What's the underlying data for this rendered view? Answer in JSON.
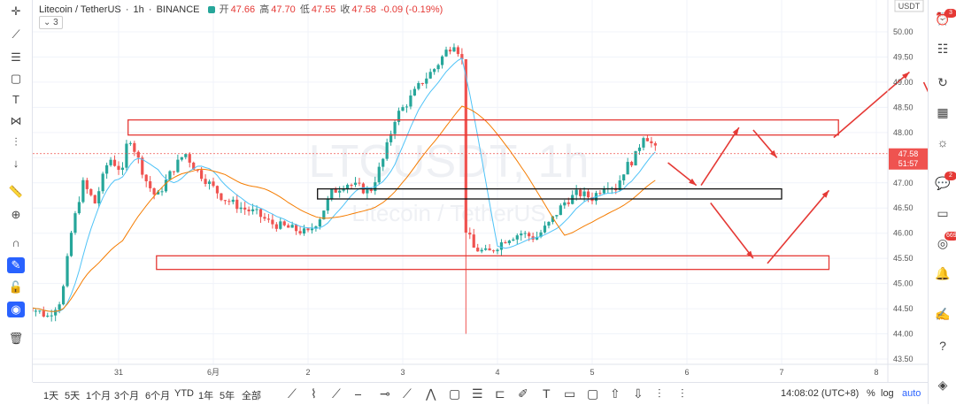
{
  "header": {
    "symbol": "Litecoin / TetherUS",
    "interval": "1h",
    "exchange": "BINANCE",
    "open_label": "开",
    "open": "47.66",
    "high_label": "高",
    "high": "47.70",
    "low_label": "低",
    "low": "47.55",
    "close_label": "收",
    "close": "47.58",
    "change": "-0.09 (-0.19%)",
    "indicators_collapse": "⌄ 3"
  },
  "watermark": {
    "line1": "LTCUSDT, 1h",
    "line2": "Litecoin / TetherUS"
  },
  "price_axis": {
    "currency": "USDT",
    "last_price": "47.58",
    "countdown": "51:57",
    "colors": {
      "up": "#26a69a",
      "down": "#ef5350",
      "ma_fast": "#4fc3f7",
      "ma_slow": "#f57c00",
      "drawing": "#e53935"
    }
  },
  "chart_data": {
    "type": "candlestick",
    "title": "Litecoin / TetherUS, 1h, BINANCE",
    "ylim": [
      43.4,
      50.4
    ],
    "y_ticks": [
      "50.00",
      "49.50",
      "49.00",
      "48.50",
      "48.00",
      "47.50",
      "47.00",
      "46.50",
      "46.00",
      "45.50",
      "45.00",
      "44.50",
      "44.00",
      "43.50"
    ],
    "x_ticks": [
      {
        "label": "31",
        "day": 30.5
      },
      {
        "label": "6月",
        "day": 31.5
      },
      {
        "label": "2",
        "day": 32.5
      },
      {
        "label": "3",
        "day": 33.5
      },
      {
        "label": "4",
        "day": 34.5
      },
      {
        "label": "5",
        "day": 35.5
      },
      {
        "label": "6",
        "day": 36.5
      },
      {
        "label": "7",
        "day": 37.5
      },
      {
        "label": "8",
        "day": 38.5
      }
    ],
    "xlim_day": [
      29.5,
      39.5
    ],
    "x_unit": "days since May 30",
    "candle_anchor_points": [
      [
        29.5,
        44.6
      ],
      [
        29.75,
        44.35
      ],
      [
        29.9,
        44.7
      ],
      [
        30.0,
        46.0
      ],
      [
        30.12,
        47.0
      ],
      [
        30.25,
        46.6
      ],
      [
        30.4,
        47.5
      ],
      [
        30.55,
        47.2
      ],
      [
        30.6,
        48.0
      ],
      [
        30.7,
        47.5
      ],
      [
        30.8,
        47.0
      ],
      [
        30.9,
        46.7
      ],
      [
        31.05,
        47.2
      ],
      [
        31.2,
        47.6
      ],
      [
        31.3,
        47.3
      ],
      [
        31.45,
        47.0
      ],
      [
        31.6,
        46.7
      ],
      [
        31.8,
        46.5
      ],
      [
        31.95,
        46.4
      ],
      [
        32.1,
        46.2
      ],
      [
        32.3,
        46.1
      ],
      [
        32.5,
        46.0
      ],
      [
        32.62,
        46.3
      ],
      [
        32.75,
        46.8
      ],
      [
        32.9,
        47.0
      ],
      [
        33.05,
        46.9
      ],
      [
        33.15,
        46.8
      ],
      [
        33.3,
        47.5
      ],
      [
        33.42,
        48.3
      ],
      [
        33.55,
        48.6
      ],
      [
        33.7,
        49.0
      ],
      [
        33.85,
        49.3
      ],
      [
        33.95,
        49.6
      ],
      [
        34.05,
        49.8
      ],
      [
        34.15,
        49.3
      ],
      [
        34.16,
        46.1
      ],
      [
        34.25,
        45.7
      ],
      [
        34.4,
        45.6
      ],
      [
        34.6,
        45.9
      ],
      [
        34.75,
        46.0
      ],
      [
        34.9,
        45.9
      ],
      [
        35.05,
        46.2
      ],
      [
        35.2,
        46.6
      ],
      [
        35.35,
        46.8
      ],
      [
        35.5,
        46.7
      ],
      [
        35.65,
        47.0
      ],
      [
        35.75,
        46.9
      ],
      [
        35.85,
        47.3
      ],
      [
        35.95,
        47.5
      ],
      [
        36.05,
        48.0
      ],
      [
        36.15,
        47.7
      ],
      [
        36.2,
        47.58
      ]
    ],
    "series": [
      {
        "name": "Litecoin / TetherUS",
        "type": "candlestick"
      }
    ]
  },
  "drawings": {
    "resistance_zone": {
      "y_top": 48.25,
      "y_bottom": 47.95,
      "day_from": 30.6,
      "day_to": 38.1
    },
    "mid_zone": {
      "y_top": 46.88,
      "y_bottom": 46.68,
      "day_from": 32.6,
      "day_to": 37.5
    },
    "support_zone": {
      "y_top": 45.55,
      "y_bottom": 45.28,
      "day_from": 30.9,
      "day_to": 38.0
    }
  },
  "bottom": {
    "ranges": [
      "1天",
      "5天",
      "1个月",
      "3个月",
      "6个月",
      "YTD",
      "1年",
      "5年",
      "全部"
    ],
    "time": "14:08:02 (UTC+8)",
    "pct": "%",
    "log": "log",
    "auto": "auto"
  },
  "left_toolbar": [
    "plus-icon",
    "line-icon",
    "horizontal-lines-icon",
    "rectangle-icon",
    "text-icon",
    "pattern-icon",
    "ruler-measure-icon",
    "arrow-down-icon",
    "ruler-icon",
    "zoom-in-icon",
    "magnet-icon",
    "draw-mode-icon",
    "lock-icon",
    "eye-hide-icon",
    "trash-icon"
  ],
  "right_toolbar": {
    "alerts_badge": "3",
    "chat_badge": "2",
    "stream_badge": "669"
  }
}
